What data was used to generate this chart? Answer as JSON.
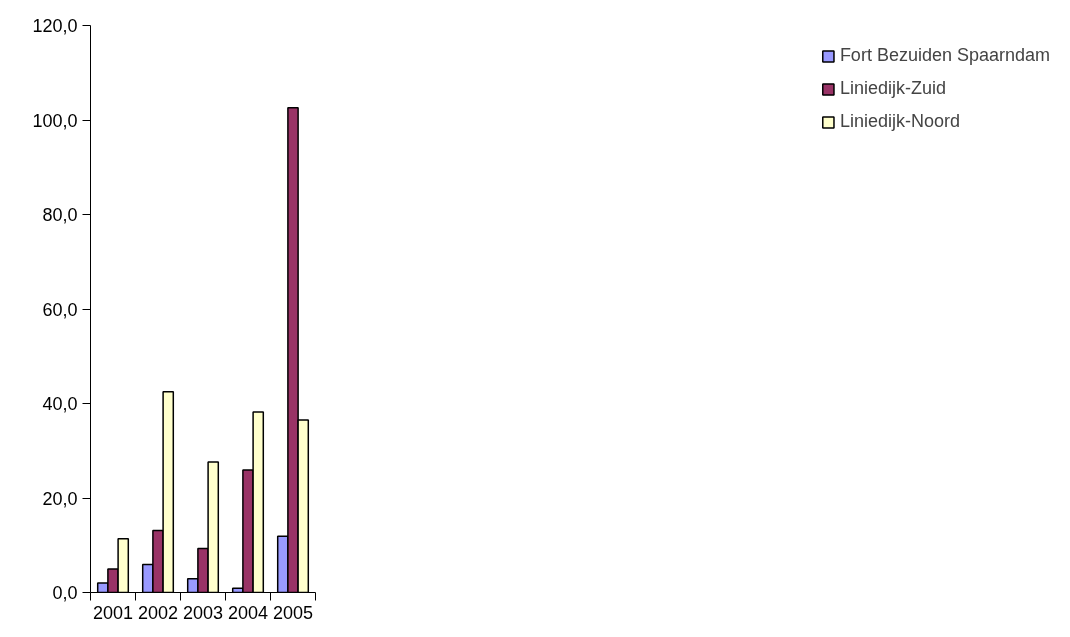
{
  "chart_data": {
    "type": "bar",
    "categories": [
      "2001",
      "2002",
      "2003",
      "2004",
      "2005"
    ],
    "series": [
      {
        "name": "Fort Bezuiden Spaarndam",
        "color": "#9999ff",
        "values": [
          2.0,
          5.9,
          2.9,
          0.9,
          11.9
        ]
      },
      {
        "name": "Liniedijk-Zuid",
        "color": "#993366",
        "values": [
          5.0,
          13.1,
          9.3,
          25.9,
          102.6
        ]
      },
      {
        "name": "Liniedijk-Noord",
        "color": "#ffffcc",
        "values": [
          11.4,
          42.5,
          27.6,
          38.2,
          36.5
        ]
      }
    ],
    "ylim": [
      0,
      120
    ],
    "yticks": [
      {
        "value": 0,
        "label": "0,0"
      },
      {
        "value": 20,
        "label": "20,0"
      },
      {
        "value": 40,
        "label": "40,0"
      },
      {
        "value": 60,
        "label": "60,0"
      },
      {
        "value": 80,
        "label": "80,0"
      },
      {
        "value": 100,
        "label": "100,0"
      },
      {
        "value": 120,
        "label": "120,0"
      }
    ],
    "grid": false,
    "legend": "right"
  }
}
